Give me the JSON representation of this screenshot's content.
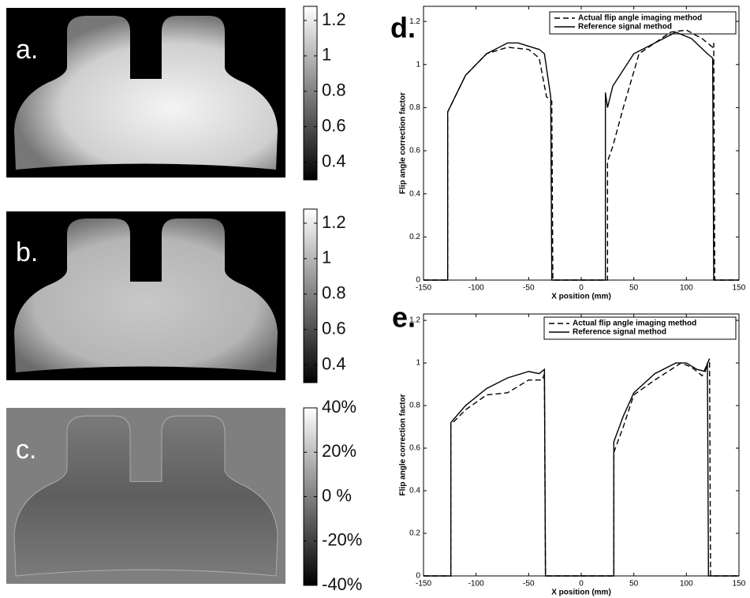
{
  "chart_data": [
    {
      "type": "image",
      "label": "a.",
      "colorbar": {
        "lim": [
          0.3,
          1.28
        ],
        "ticks": [
          0.4,
          0.6,
          0.8,
          1,
          1.2
        ]
      }
    },
    {
      "type": "image",
      "label": "b.",
      "colorbar": {
        "lim": [
          0.3,
          1.28
        ],
        "ticks": [
          0.4,
          0.6,
          0.8,
          1,
          1.2
        ]
      }
    },
    {
      "type": "image",
      "label": "c.",
      "colorbar": {
        "lim": [
          -40,
          40
        ],
        "ticks": [
          {
            "value": 40,
            "label": "40%"
          },
          {
            "value": 20,
            "label": "20%"
          },
          {
            "value": 0,
            "label": "0 %"
          },
          {
            "value": -20,
            "label": "-20%"
          },
          {
            "value": -40,
            "label": "-40%"
          }
        ]
      }
    },
    {
      "type": "line",
      "label": "d.",
      "x_label": "X position (mm)",
      "y_label": "Flip angle correction factor",
      "xlim": [
        -150,
        150
      ],
      "ylim": [
        0,
        1.27
      ],
      "xticks": [
        -150,
        -100,
        -50,
        0,
        50,
        100,
        150
      ],
      "yticks": [
        0,
        0.2,
        0.4,
        0.6,
        0.8,
        1,
        1.2
      ],
      "series": [
        {
          "name": "Actual flip angle imaging method",
          "color": "#000000",
          "dash": "dashed",
          "x": [
            -150,
            -127,
            -127,
            -110,
            -90,
            -70,
            -50,
            -40,
            -33,
            -28,
            -27,
            25,
            25,
            30,
            40,
            55,
            85,
            100,
            115,
            125,
            126,
            127,
            150
          ],
          "values": [
            0,
            0,
            0.78,
            0.95,
            1.05,
            1.08,
            1.07,
            1.03,
            0.85,
            0.83,
            0,
            0,
            0.55,
            0.62,
            0.8,
            1.05,
            1.15,
            1.16,
            1.12,
            1.08,
            1.1,
            0,
            0
          ]
        },
        {
          "name": "Reference signal method",
          "color": "#000000",
          "dash": "solid",
          "x": [
            -150,
            -127,
            -127,
            -110,
            -90,
            -70,
            -60,
            -40,
            -35,
            -29,
            -28,
            23,
            23,
            25,
            30,
            50,
            70,
            90,
            105,
            120,
            125,
            126,
            150
          ],
          "values": [
            0,
            0,
            0.78,
            0.95,
            1.05,
            1.1,
            1.1,
            1.07,
            1.05,
            0.85,
            0,
            0,
            0.87,
            0.8,
            0.9,
            1.05,
            1.1,
            1.15,
            1.12,
            1.05,
            1.03,
            0,
            0
          ]
        }
      ]
    },
    {
      "type": "line",
      "label": "e.",
      "x_label": "X position (mm)",
      "y_label": "Flip angle correction factor",
      "xlim": [
        -150,
        150
      ],
      "ylim": [
        0,
        1.23
      ],
      "xticks": [
        -150,
        -100,
        -50,
        0,
        50,
        100,
        150
      ],
      "yticks": [
        0,
        0.2,
        0.4,
        0.6,
        0.8,
        1,
        1.2
      ],
      "series": [
        {
          "name": "Actual flip angle imaging method",
          "color": "#000000",
          "dash": "dashed",
          "x": [
            -150,
            -124,
            -124,
            -110,
            -90,
            -70,
            -50,
            -37,
            -35,
            -34,
            31,
            31,
            40,
            50,
            70,
            95,
            105,
            115,
            122,
            123,
            150
          ],
          "values": [
            0,
            0,
            0.71,
            0.78,
            0.85,
            0.86,
            0.92,
            0.92,
            0.95,
            0,
            0,
            0.58,
            0.7,
            0.85,
            0.92,
            1.0,
            0.98,
            0.94,
            1.02,
            0,
            0
          ]
        },
        {
          "name": "Reference signal method",
          "color": "#000000",
          "dash": "solid",
          "x": [
            -150,
            -124,
            -124,
            -110,
            -90,
            -70,
            -50,
            -40,
            -35,
            -34,
            31,
            31,
            40,
            50,
            70,
            90,
            100,
            110,
            118,
            120,
            121,
            150
          ],
          "values": [
            0,
            0,
            0.72,
            0.8,
            0.88,
            0.93,
            0.96,
            0.95,
            0.97,
            0,
            0,
            0.63,
            0.75,
            0.86,
            0.95,
            1.0,
            1.0,
            0.97,
            0.96,
            1.0,
            0,
            0
          ]
        }
      ]
    }
  ]
}
